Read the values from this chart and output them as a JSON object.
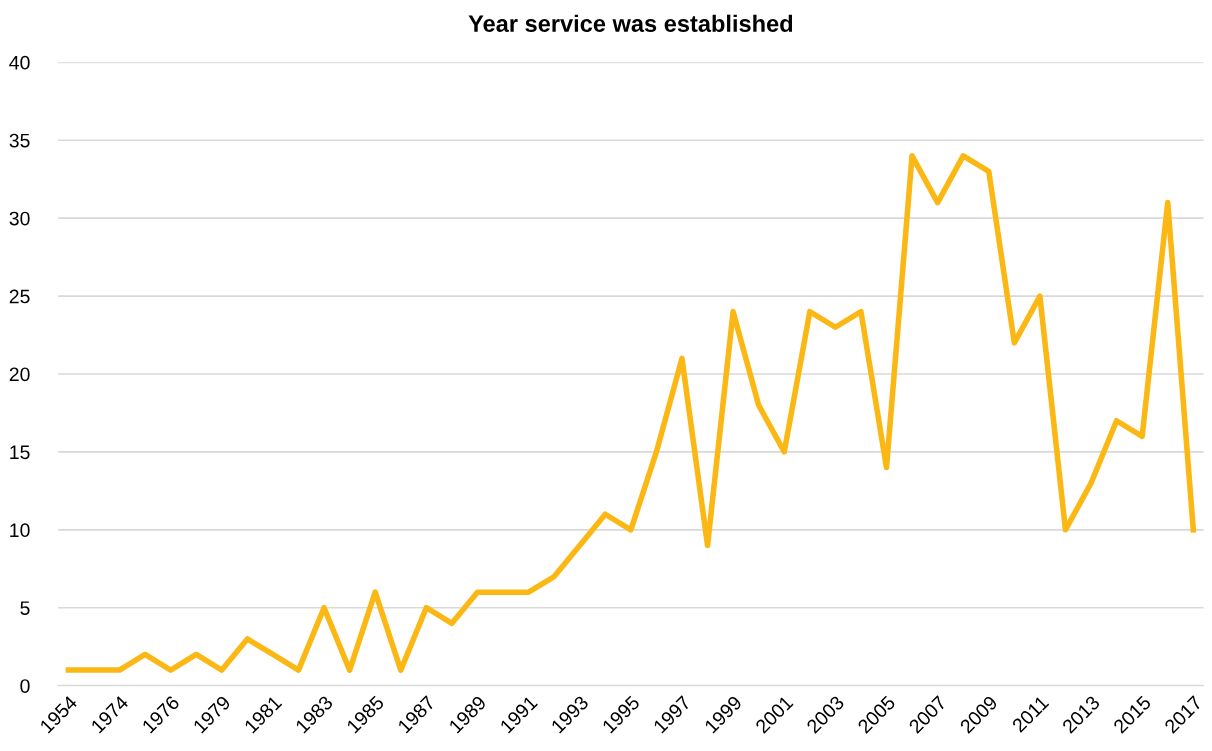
{
  "chart_data": {
    "type": "line",
    "title": "Year service was established",
    "categories": [
      "1954",
      null,
      "1974",
      null,
      "1976",
      null,
      "1979",
      null,
      "1981",
      null,
      "1983",
      null,
      "1985",
      null,
      "1987",
      null,
      "1989",
      null,
      "1991",
      null,
      "1993",
      null,
      "1995",
      null,
      "1997",
      null,
      "1999",
      null,
      "2001",
      null,
      "2003",
      null,
      "2005",
      null,
      "2007",
      null,
      "2009",
      null,
      "2011",
      null,
      "2013",
      null,
      "2015",
      null,
      "2017"
    ],
    "series": [
      {
        "color": "#fbb814",
        "values": [
          1,
          1,
          1,
          2,
          1,
          2,
          1,
          3,
          2,
          1,
          5,
          1,
          6,
          1,
          5,
          4,
          6,
          6,
          6,
          7,
          9,
          11,
          10,
          15,
          21,
          9,
          24,
          18,
          15,
          24,
          23,
          24,
          14,
          34,
          31,
          34,
          33,
          22,
          25,
          10,
          13,
          17,
          16,
          31,
          10
        ]
      }
    ],
    "ylim": [
      0,
      40
    ],
    "yticks": [
      0,
      5,
      10,
      15,
      20,
      25,
      30,
      35,
      40
    ],
    "grid": "y",
    "legend": false,
    "marker": "none",
    "line_style": "solid"
  }
}
